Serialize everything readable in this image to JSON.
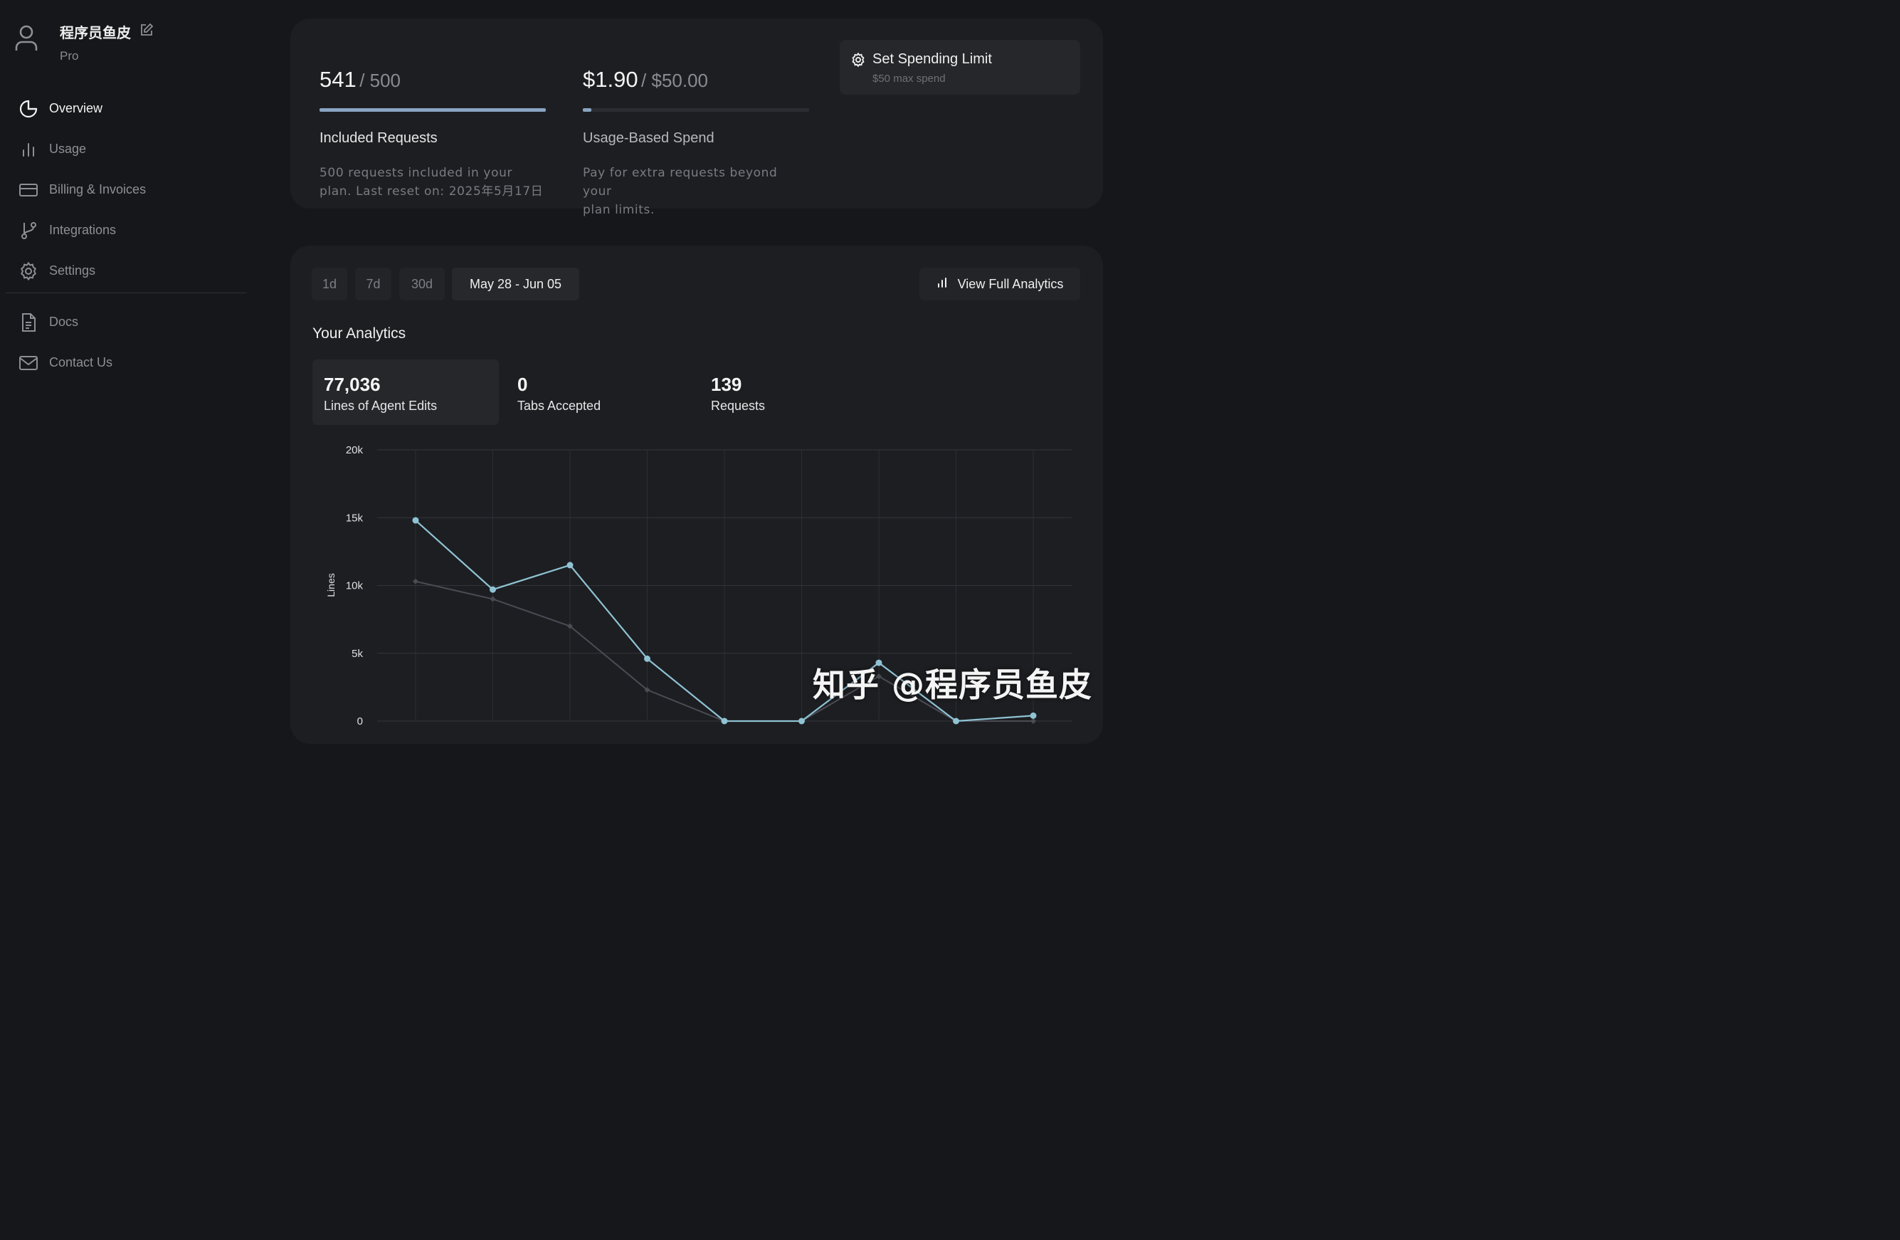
{
  "user": {
    "name": "程序员鱼皮",
    "plan": "Pro"
  },
  "nav": {
    "items": [
      {
        "label": "Overview",
        "icon": "pie-chart-icon",
        "active": true
      },
      {
        "label": "Usage",
        "icon": "bar-chart-icon",
        "active": false
      },
      {
        "label": "Billing & Invoices",
        "icon": "credit-card-icon",
        "active": false
      },
      {
        "label": "Integrations",
        "icon": "git-branch-icon",
        "active": false
      },
      {
        "label": "Settings",
        "icon": "gear-icon",
        "active": false
      }
    ],
    "secondary": [
      {
        "label": "Docs",
        "icon": "document-icon"
      },
      {
        "label": "Contact Us",
        "icon": "mail-icon"
      }
    ]
  },
  "usage": {
    "included": {
      "value": "541",
      "limit": "/ 500",
      "progress": 1.0,
      "title": "Included Requests",
      "description_line1": "500 requests included in your",
      "description_line2": "plan. Last reset on: 2025年5月17日"
    },
    "spend": {
      "value": "$1.90",
      "limit": "/ $50.00",
      "progress": 0.038,
      "title": "Usage-Based Spend",
      "description_line1": "Pay for extra requests beyond your",
      "description_line2": "plan limits."
    },
    "spending_limit": {
      "label": "Set Spending Limit",
      "sublabel": "$50 max spend"
    }
  },
  "analytics": {
    "ranges": [
      "1d",
      "7d",
      "30d",
      "May 28 - Jun 05"
    ],
    "active_range": "May 28 - Jun 05",
    "full_analytics_label": "View Full Analytics",
    "title": "Your Analytics",
    "metrics": [
      {
        "value": "77,036",
        "label": "Lines of Agent Edits",
        "active": true
      },
      {
        "value": "0",
        "label": "Tabs Accepted",
        "active": false
      },
      {
        "value": "139",
        "label": "Requests",
        "active": false
      }
    ]
  },
  "chart_data": {
    "type": "line",
    "ylabel": "Lines",
    "ylim": [
      0,
      20000
    ],
    "yticks": [
      0,
      5000,
      10000,
      15000,
      20000
    ],
    "ytick_labels": [
      "0",
      "5k",
      "10k",
      "15k",
      "20k"
    ],
    "grid": true,
    "series": [
      {
        "color": "#8fc3d3",
        "values": [
          14800,
          9700,
          11500,
          4600,
          0,
          0,
          4300,
          0,
          400
        ]
      },
      {
        "color": "#4a4c54",
        "values": [
          10300,
          9000,
          7000,
          2300,
          0,
          0,
          3300,
          0,
          0
        ]
      }
    ]
  },
  "watermark": "知乎 @程序员鱼皮"
}
